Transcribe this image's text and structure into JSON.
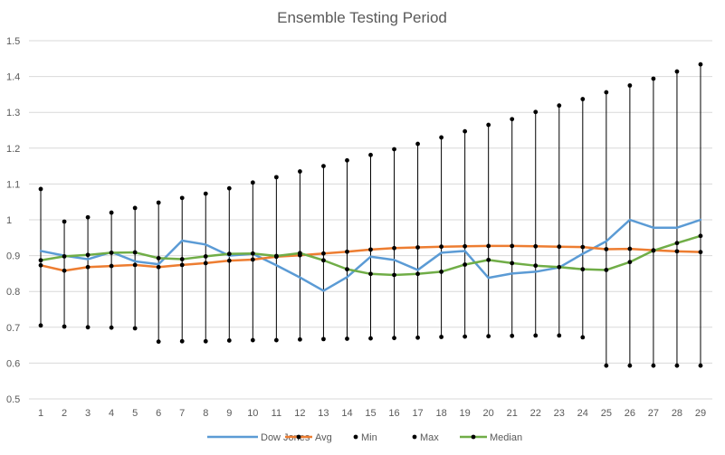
{
  "chart_data": {
    "type": "line",
    "title": "Ensemble Testing Period",
    "xlabel": "",
    "ylabel": "",
    "ylim": [
      0.5,
      1.5
    ],
    "yticks": [
      "0.5",
      "0.6",
      "0.7",
      "0.8",
      "0.9",
      "1",
      "1.1",
      "1.2",
      "1.3",
      "1.4",
      "1.5"
    ],
    "grid": true,
    "legend_position": "bottom",
    "x": [
      1,
      2,
      3,
      4,
      5,
      6,
      7,
      8,
      9,
      10,
      11,
      12,
      13,
      14,
      15,
      16,
      17,
      18,
      19,
      20,
      21,
      22,
      23,
      24,
      25,
      26,
      27,
      28,
      29
    ],
    "series": [
      {
        "name": "Dow Jones",
        "color": "#5b9bd5",
        "marker": "none",
        "values": [
          0.913,
          0.9,
          0.89,
          0.91,
          0.884,
          0.876,
          0.942,
          0.931,
          0.9,
          0.905,
          0.873,
          0.839,
          0.802,
          0.84,
          0.897,
          0.888,
          0.86,
          0.908,
          0.913,
          0.838,
          0.85,
          0.855,
          0.867,
          0.905,
          0.94,
          1.0,
          0.978,
          0.978,
          1.0
        ]
      },
      {
        "name": "Avg",
        "color": "#ed7d31",
        "marker": "dot",
        "values": [
          0.873,
          0.858,
          0.868,
          0.871,
          0.874,
          0.868,
          0.874,
          0.879,
          0.886,
          0.889,
          0.897,
          0.901,
          0.906,
          0.911,
          0.917,
          0.921,
          0.923,
          0.925,
          0.926,
          0.927,
          0.927,
          0.926,
          0.925,
          0.924,
          0.918,
          0.919,
          0.915,
          0.912,
          0.91
        ]
      },
      {
        "name": "Min",
        "color": "#000000",
        "marker": "dot",
        "values": [
          0.705,
          0.702,
          0.7,
          0.699,
          0.697,
          0.66,
          0.661,
          0.661,
          0.663,
          0.664,
          0.664,
          0.666,
          0.667,
          0.668,
          0.669,
          0.67,
          0.671,
          0.673,
          0.674,
          0.675,
          0.676,
          0.677,
          0.677,
          0.672,
          0.593,
          0.593,
          0.593,
          0.593,
          0.593
        ]
      },
      {
        "name": "Max",
        "color": "#000000",
        "marker": "dot",
        "values": [
          1.086,
          0.995,
          1.007,
          1.02,
          1.033,
          1.048,
          1.061,
          1.073,
          1.088,
          1.104,
          1.119,
          1.135,
          1.15,
          1.166,
          1.181,
          1.197,
          1.212,
          1.23,
          1.247,
          1.265,
          1.281,
          1.301,
          1.319,
          1.337,
          1.356,
          1.375,
          1.394,
          1.414,
          1.434
        ]
      },
      {
        "name": "Median",
        "color": "#70ad47",
        "marker": "dot",
        "values": [
          0.887,
          0.898,
          0.902,
          0.908,
          0.909,
          0.893,
          0.89,
          0.898,
          0.905,
          0.906,
          0.899,
          0.907,
          0.887,
          0.862,
          0.849,
          0.846,
          0.849,
          0.855,
          0.875,
          0.888,
          0.879,
          0.872,
          0.868,
          0.862,
          0.86,
          0.882,
          0.914,
          0.935,
          0.955
        ]
      }
    ]
  }
}
